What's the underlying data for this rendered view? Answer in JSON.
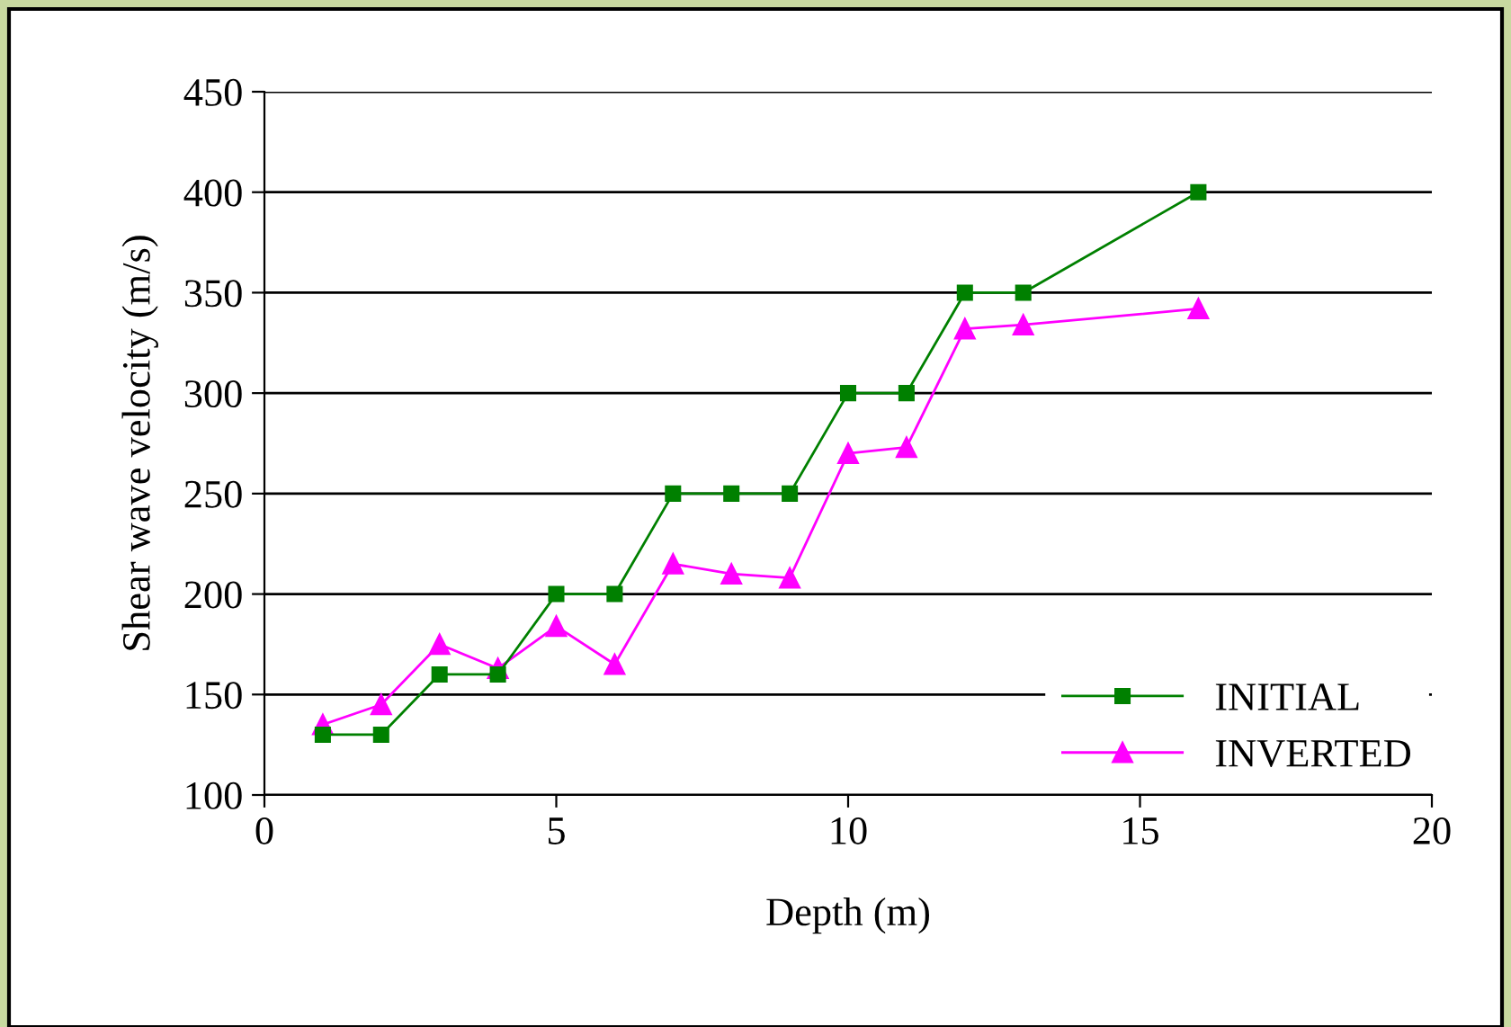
{
  "chart_data": {
    "type": "line",
    "xlabel": "Depth (m)",
    "ylabel": "Shear wave velocity (m/s)",
    "xlim": [
      0,
      20
    ],
    "xticks": [
      0,
      5,
      10,
      15,
      20
    ],
    "ylim": [
      100,
      450
    ],
    "yticks": [
      100,
      150,
      200,
      250,
      300,
      350,
      400,
      450
    ],
    "grid": "y",
    "legend": "bottom right",
    "series": [
      {
        "name": "INITIAL",
        "color": "#008000",
        "marker": "square",
        "x": [
          1,
          2,
          3,
          4,
          5,
          6,
          7,
          8,
          9,
          10,
          11,
          12,
          13,
          16
        ],
        "values": [
          130,
          130,
          160,
          160,
          200,
          200,
          250,
          250,
          250,
          300,
          300,
          350,
          350,
          400
        ]
      },
      {
        "name": "INVERTED",
        "color": "#ff00ff",
        "marker": "triangle",
        "x": [
          1,
          2,
          3,
          4,
          5,
          6,
          7,
          8,
          9,
          10,
          11,
          12,
          13,
          16
        ],
        "values": [
          135,
          145,
          175,
          163,
          184,
          165,
          215,
          210,
          208,
          270,
          273,
          332,
          334,
          342
        ]
      }
    ]
  }
}
